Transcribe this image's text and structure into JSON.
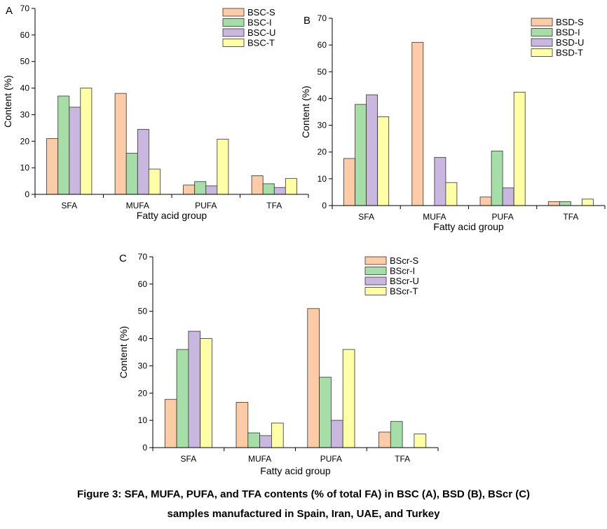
{
  "chart_data": [
    {
      "type": "bar",
      "panel": "A",
      "categories": [
        "SFA",
        "MUFA",
        "PUFA",
        "TFA"
      ],
      "series": [
        {
          "name": "BSC-S",
          "color": "#FDCBA5",
          "values": [
            21,
            38,
            3.5,
            7
          ]
        },
        {
          "name": "BSC-I",
          "color": "#A5DEA7",
          "values": [
            37,
            15.5,
            4.8,
            4
          ]
        },
        {
          "name": "BSC-U",
          "color": "#C9B7E0",
          "values": [
            32.8,
            24.5,
            3.2,
            2.6
          ]
        },
        {
          "name": "BSC-T",
          "color": "#FFFFA5",
          "values": [
            40,
            9.5,
            20.8,
            6
          ]
        }
      ],
      "xlabel": "Fatty acid group",
      "ylabel": "Content (%)",
      "ylim": [
        0,
        70
      ],
      "yticks": [
        0,
        10,
        20,
        30,
        40,
        50,
        60,
        70
      ],
      "legend": "top-right"
    },
    {
      "type": "bar",
      "panel": "B",
      "categories": [
        "SFA",
        "MUFA",
        "PUFA",
        "TFA"
      ],
      "series": [
        {
          "name": "BSD-S",
          "color": "#FDCBA5",
          "values": [
            17.6,
            61,
            3.2,
            1.5
          ]
        },
        {
          "name": "BSD-I",
          "color": "#A5DEA7",
          "values": [
            37.8,
            0,
            20.4,
            1.5
          ]
        },
        {
          "name": "BSD-U",
          "color": "#C9B7E0",
          "values": [
            41.4,
            18,
            6.6,
            0
          ]
        },
        {
          "name": "BSD-T",
          "color": "#FFFFA5",
          "values": [
            33.2,
            8.6,
            42.4,
            2.4
          ]
        }
      ],
      "xlabel": "Fatty acid group",
      "ylabel": "Content (%)",
      "ylim": [
        0,
        70
      ],
      "yticks": [
        0,
        10,
        20,
        30,
        40,
        50,
        60,
        70
      ],
      "legend": "top-right"
    },
    {
      "type": "bar",
      "panel": "C",
      "categories": [
        "SFA",
        "MUFA",
        "PUFA",
        "TFA"
      ],
      "series": [
        {
          "name": "BScr-S",
          "color": "#FDCBA5",
          "values": [
            17.7,
            16.6,
            51,
            5.7
          ]
        },
        {
          "name": "BScr-I",
          "color": "#A5DEA7",
          "values": [
            36,
            5.4,
            25.8,
            9.6
          ]
        },
        {
          "name": "BScr-U",
          "color": "#C9B7E0",
          "values": [
            42.7,
            4.4,
            10,
            0
          ]
        },
        {
          "name": "BScr-T",
          "color": "#FFFFA5",
          "values": [
            40,
            9,
            36,
            5
          ]
        }
      ],
      "xlabel": "Fatty acid group",
      "ylabel": "Content (%)",
      "ylim": [
        0,
        70
      ],
      "yticks": [
        0,
        10,
        20,
        30,
        40,
        50,
        60,
        70
      ],
      "legend": "top-right"
    }
  ],
  "caption": {
    "line1": "Figure 3: SFA, MUFA, PUFA, and TFA contents (% of total FA) in BSC (A), BSD (B), BScr (C)",
    "line2": "samples manufactured in Spain, Iran, UAE, and Turkey"
  }
}
